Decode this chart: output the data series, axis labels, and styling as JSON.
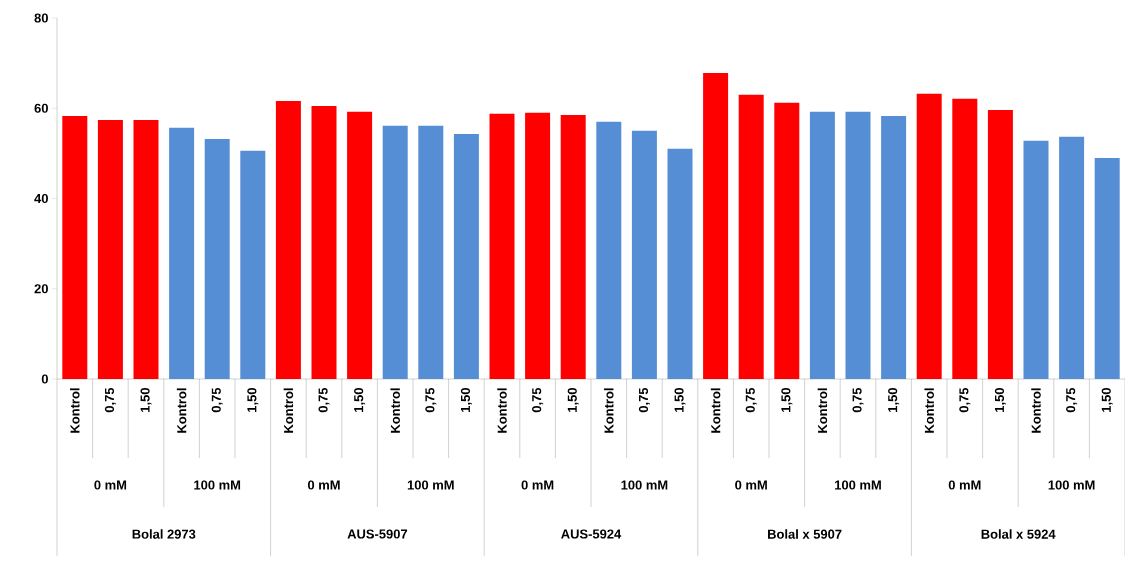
{
  "chart_data": {
    "type": "bar",
    "categories": [
      "Kontrol",
      "0,75",
      "1,50",
      "Kontrol",
      "0,75",
      "1,50",
      "Kontrol",
      "0,75",
      "1,50",
      "Kontrol",
      "0,75",
      "1,50",
      "Kontrol",
      "0,75",
      "1,50",
      "Kontrol",
      "0,75",
      "1,50",
      "Kontrol",
      "0,75",
      "1,50",
      "Kontrol",
      "0,75",
      "1,50",
      "Kontrol",
      "0,75",
      "1,50",
      "Kontrol",
      "0,75",
      "1,50"
    ],
    "values": [
      58.3,
      57.4,
      57.4,
      55.7,
      53.2,
      50.6,
      61.6,
      60.5,
      59.2,
      56.1,
      56.1,
      54.3,
      58.8,
      59.0,
      58.5,
      57.0,
      55.0,
      51.0,
      67.8,
      63.0,
      61.2,
      59.2,
      59.2,
      58.3,
      63.2,
      62.1,
      59.6,
      52.8,
      53.7,
      49.0
    ],
    "colors": [
      "#ff0000",
      "#ff0000",
      "#ff0000",
      "#558ed5",
      "#558ed5",
      "#558ed5",
      "#ff0000",
      "#ff0000",
      "#ff0000",
      "#558ed5",
      "#558ed5",
      "#558ed5",
      "#ff0000",
      "#ff0000",
      "#ff0000",
      "#558ed5",
      "#558ed5",
      "#558ed5",
      "#ff0000",
      "#ff0000",
      "#ff0000",
      "#558ed5",
      "#558ed5",
      "#558ed5",
      "#ff0000",
      "#ff0000",
      "#ff0000",
      "#558ed5",
      "#558ed5",
      "#558ed5"
    ],
    "annotations": [
      "0 mM",
      "100 mM",
      "0 mM",
      "100 mM",
      "0 mM",
      "100 mM",
      "0 mM",
      "100 mM",
      "0 mM",
      "100 mM",
      "Bolal 2973",
      "AUS-5907",
      "AUS-5924",
      "Bolal x 5907",
      "Bolal x 5924"
    ],
    "ylim": [
      0,
      80
    ],
    "yticks": [
      0,
      20,
      40,
      60,
      80
    ],
    "grid": false
  }
}
